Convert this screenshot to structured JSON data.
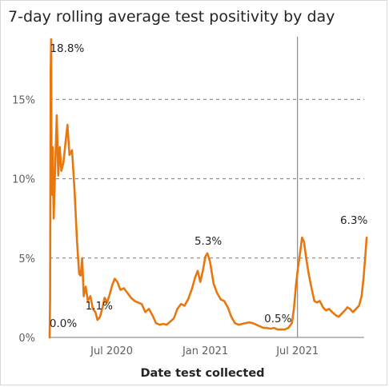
{
  "chart_data": {
    "type": "line",
    "title": "7-day rolling average test positivity by day",
    "xlabel": "Date test collected",
    "ylabel": "",
    "ylim": [
      0,
      19
    ],
    "y_ticks": [
      0,
      5,
      10,
      15
    ],
    "y_tick_labels": [
      "0%",
      "5%",
      "10%",
      "15%"
    ],
    "x_range": [
      "2020-03-01",
      "2021-12-31"
    ],
    "x_ticks": [
      "2020-07-01",
      "2021-01-01",
      "2021-07-01"
    ],
    "x_tick_labels": [
      "Jul 2020",
      "Jan 2021",
      "Jul 2021"
    ],
    "grid": "horizontal dashed",
    "reference_line_date": "2021-07-01",
    "line_color": "#e8770f",
    "series": [
      {
        "points": [
          [
            "2020-03-01",
            0.0
          ],
          [
            "2020-03-02",
            2.5
          ],
          [
            "2020-03-03",
            16.8
          ],
          [
            "2020-03-04",
            18.8
          ],
          [
            "2020-03-05",
            9.0
          ],
          [
            "2020-03-07",
            12.0
          ],
          [
            "2020-03-09",
            7.5
          ],
          [
            "2020-03-11",
            9.8
          ],
          [
            "2020-03-15",
            14.0
          ],
          [
            "2020-03-18",
            10.2
          ],
          [
            "2020-03-21",
            12.0
          ],
          [
            "2020-03-24",
            10.5
          ],
          [
            "2020-03-28",
            11.0
          ],
          [
            "2020-04-02",
            12.5
          ],
          [
            "2020-04-05",
            13.4
          ],
          [
            "2020-04-09",
            11.5
          ],
          [
            "2020-04-14",
            11.8
          ],
          [
            "2020-04-19",
            9.2
          ],
          [
            "2020-04-24",
            6.0
          ],
          [
            "2020-04-28",
            4.0
          ],
          [
            "2020-05-01",
            3.9
          ],
          [
            "2020-05-04",
            5.0
          ],
          [
            "2020-05-07",
            2.6
          ],
          [
            "2020-05-11",
            3.2
          ],
          [
            "2020-05-15",
            2.3
          ],
          [
            "2020-05-20",
            2.6
          ],
          [
            "2020-05-25",
            1.8
          ],
          [
            "2020-05-30",
            1.6
          ],
          [
            "2020-06-03",
            1.1
          ],
          [
            "2020-06-08",
            1.3
          ],
          [
            "2020-06-13",
            1.9
          ],
          [
            "2020-06-17",
            2.5
          ],
          [
            "2020-06-22",
            2.2
          ],
          [
            "2020-06-27",
            2.7
          ],
          [
            "2020-07-02",
            3.3
          ],
          [
            "2020-07-07",
            3.7
          ],
          [
            "2020-07-12",
            3.5
          ],
          [
            "2020-07-18",
            3.0
          ],
          [
            "2020-07-25",
            3.1
          ],
          [
            "2020-08-01",
            2.8
          ],
          [
            "2020-08-08",
            2.5
          ],
          [
            "2020-08-15",
            2.3
          ],
          [
            "2020-08-22",
            2.2
          ],
          [
            "2020-08-29",
            2.1
          ],
          [
            "2020-09-05",
            1.6
          ],
          [
            "2020-09-12",
            1.8
          ],
          [
            "2020-09-19",
            1.4
          ],
          [
            "2020-09-26",
            0.9
          ],
          [
            "2020-10-03",
            0.8
          ],
          [
            "2020-10-10",
            0.85
          ],
          [
            "2020-10-17",
            0.8
          ],
          [
            "2020-10-24",
            1.0
          ],
          [
            "2020-10-31",
            1.2
          ],
          [
            "2020-11-07",
            1.8
          ],
          [
            "2020-11-14",
            2.1
          ],
          [
            "2020-11-21",
            2.0
          ],
          [
            "2020-11-28",
            2.4
          ],
          [
            "2020-12-05",
            3.0
          ],
          [
            "2020-12-12",
            3.8
          ],
          [
            "2020-12-17",
            4.2
          ],
          [
            "2020-12-22",
            3.5
          ],
          [
            "2020-12-27",
            4.2
          ],
          [
            "2021-01-01",
            5.1
          ],
          [
            "2021-01-05",
            5.3
          ],
          [
            "2021-01-10",
            4.8
          ],
          [
            "2021-01-17",
            3.4
          ],
          [
            "2021-01-24",
            2.8
          ],
          [
            "2021-01-31",
            2.4
          ],
          [
            "2021-02-07",
            2.3
          ],
          [
            "2021-02-14",
            1.9
          ],
          [
            "2021-02-21",
            1.3
          ],
          [
            "2021-02-28",
            0.9
          ],
          [
            "2021-03-07",
            0.8
          ],
          [
            "2021-03-14",
            0.85
          ],
          [
            "2021-03-21",
            0.9
          ],
          [
            "2021-03-28",
            0.95
          ],
          [
            "2021-04-04",
            0.9
          ],
          [
            "2021-04-11",
            0.8
          ],
          [
            "2021-04-18",
            0.7
          ],
          [
            "2021-04-25",
            0.6
          ],
          [
            "2021-05-02",
            0.6
          ],
          [
            "2021-05-09",
            0.55
          ],
          [
            "2021-05-16",
            0.6
          ],
          [
            "2021-05-23",
            0.5
          ],
          [
            "2021-05-30",
            0.5
          ],
          [
            "2021-06-06",
            0.5
          ],
          [
            "2021-06-13",
            0.6
          ],
          [
            "2021-06-20",
            0.9
          ],
          [
            "2021-06-24",
            1.8
          ],
          [
            "2021-06-28",
            3.3
          ],
          [
            "2021-07-02",
            4.4
          ],
          [
            "2021-07-06",
            5.3
          ],
          [
            "2021-07-10",
            6.3
          ],
          [
            "2021-07-14",
            6.0
          ],
          [
            "2021-07-18",
            5.0
          ],
          [
            "2021-07-23",
            4.0
          ],
          [
            "2021-07-28",
            3.2
          ],
          [
            "2021-08-03",
            2.3
          ],
          [
            "2021-08-08",
            2.2
          ],
          [
            "2021-08-14",
            2.3
          ],
          [
            "2021-08-20",
            1.9
          ],
          [
            "2021-08-26",
            1.7
          ],
          [
            "2021-09-01",
            1.8
          ],
          [
            "2021-09-07",
            1.6
          ],
          [
            "2021-09-14",
            1.4
          ],
          [
            "2021-09-20",
            1.3
          ],
          [
            "2021-09-26",
            1.5
          ],
          [
            "2021-10-02",
            1.7
          ],
          [
            "2021-10-07",
            1.9
          ],
          [
            "2021-10-12",
            1.8
          ],
          [
            "2021-10-18",
            1.6
          ],
          [
            "2021-10-24",
            1.8
          ],
          [
            "2021-10-30",
            2.0
          ],
          [
            "2021-11-04",
            2.6
          ],
          [
            "2021-11-08",
            3.8
          ],
          [
            "2021-11-11",
            5.0
          ],
          [
            "2021-11-14",
            6.3
          ]
        ]
      }
    ],
    "annotations": [
      {
        "text": "18.8%",
        "date": "2020-03-04",
        "value": 18.8
      },
      {
        "text": "0.0%",
        "date": "2020-03-01",
        "value": 0.0
      },
      {
        "text": "1.1%",
        "date": "2020-06-03",
        "value": 1.1
      },
      {
        "text": "5.3%",
        "date": "2021-01-05",
        "value": 5.3
      },
      {
        "text": "0.5%",
        "date": "2021-05-30",
        "value": 0.5
      },
      {
        "text": "6.3%",
        "date": "2021-11-14",
        "value": 6.3
      }
    ]
  }
}
